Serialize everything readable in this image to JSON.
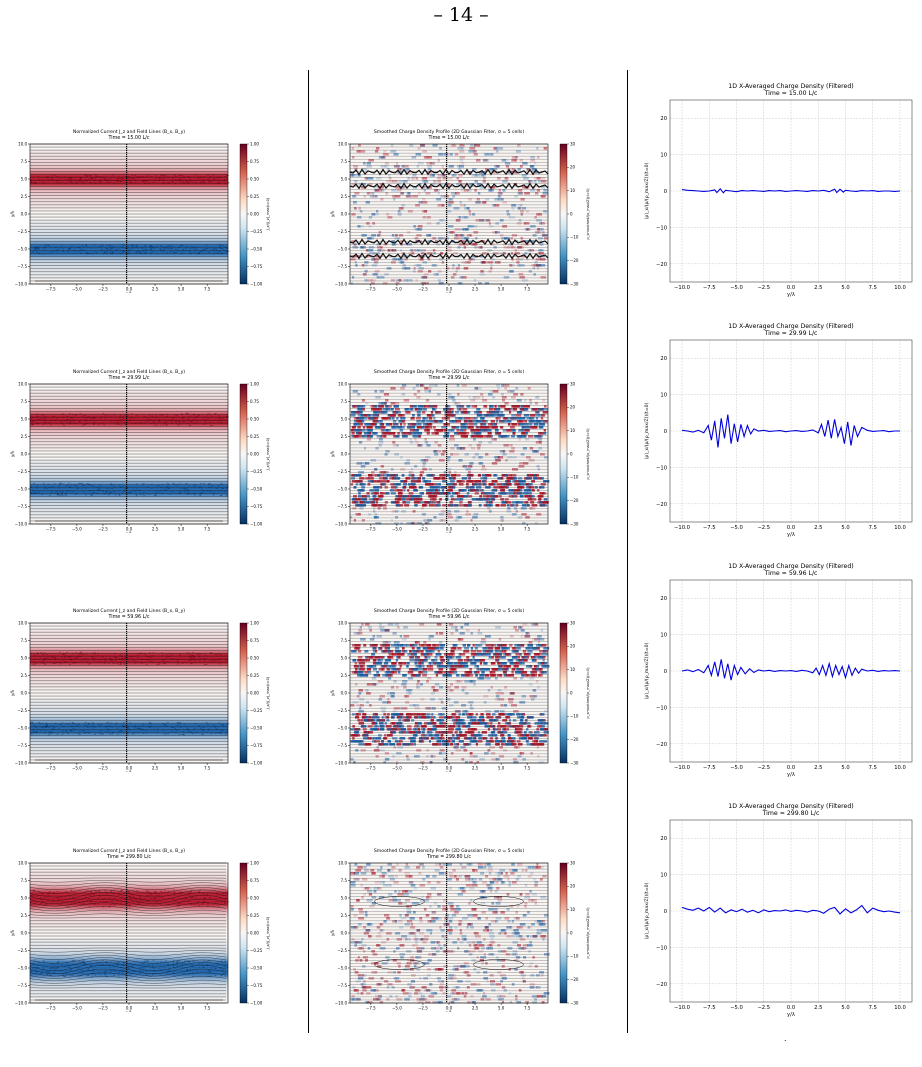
{
  "page": {
    "number": "– 14 –",
    "trailing_mark": "."
  },
  "panels_left": [
    {
      "title": "Normalized Current J_z and Field Lines (B_x, B_y)",
      "time": "Time = 15.00 L/c"
    },
    {
      "title": "Normalized Current J_z and Field Lines (B_x, B_y)",
      "time": "Time = 29.99 L/c"
    },
    {
      "title": "Normalized Current J_z and Field Lines (B_x, B_y)",
      "time": "Time = 59.96 L/c"
    },
    {
      "title": "Normalized Current J_z and Field Lines (B_x, B_y)",
      "time": "Time = 299.80 L/c"
    }
  ],
  "left_axes": {
    "xlabel": "x/λ",
    "ylabel": "y/λ",
    "xticks": [
      "−7.5",
      "−5.0",
      "−2.5",
      "0.0",
      "2.5",
      "5.0",
      "7.5"
    ],
    "yticks": [
      "10.0",
      "7.5",
      "5.0",
      "2.5",
      "0.0",
      "−2.5",
      "−5.0",
      "−7.5",
      "−10.0"
    ],
    "cbar_label": "J_z/(J_z)_max(t=0)",
    "cbar_ticks": [
      "1.00",
      "0.75",
      "0.50",
      "0.25",
      "0.00",
      "−0.25",
      "−0.50",
      "−0.75",
      "−1.00"
    ]
  },
  "panels_mid": [
    {
      "title": "Smoothed Charge Density Profile (2D Gaussian Filter, σ = 5 cells)",
      "time": "Time = 15.00 L/c"
    },
    {
      "title": "Smoothed Charge Density Profile (2D Gaussian Filter, σ = 5 cells)",
      "time": "Time = 29.99 L/c"
    },
    {
      "title": "Smoothed Charge Density Profile (2D Gaussian Filter, σ = 5 cells)",
      "time": "Time = 59.96 L/c"
    },
    {
      "title": "Smoothed Charge Density Profile (2D Gaussian Filter, σ = 5 cells)",
      "time": "Time = 299.80 L/c"
    }
  ],
  "mid_axes": {
    "xlabel": "x/λ",
    "ylabel": "y/λ",
    "xticks": [
      "−7.5",
      "−5.0",
      "−2.5",
      "0.0",
      "2.5",
      "5.0",
      "7.5"
    ],
    "yticks": [
      "10.0",
      "7.5",
      "5.0",
      "2.5",
      "0.0",
      "−2.5",
      "−5.0",
      "−7.5",
      "−10.0"
    ],
    "cbar_label": "ρ_smoothed/(ρ_max/Z)(t=0)",
    "cbar_ticks": [
      "30",
      "20",
      "10",
      "0",
      "−10",
      "−20",
      "−30"
    ]
  },
  "chart_data": [
    {
      "type": "line",
      "title": "1D X-Averaged Charge Density (Filtered)",
      "subtitle": "Time = 15.00 L/c",
      "xlabel": "y/λ",
      "ylabel": "⟨ρ⟩_x/(ρ/(ρ_max/Z))(t=0)",
      "xlim": [
        -10,
        10
      ],
      "ylim": [
        -25,
        25
      ],
      "xticks": [
        "−10.0",
        "−7.5",
        "−5.0",
        "−2.5",
        "0.0",
        "2.5",
        "5.0",
        "7.5",
        "10.0"
      ],
      "yticks": [
        "20",
        "10",
        "0",
        "−10",
        "−20"
      ],
      "grid": true,
      "series": [
        {
          "color": "#0000dd",
          "x": [
            -10,
            -9.5,
            -9,
            -8.5,
            -8,
            -7.5,
            -7,
            -6.8,
            -6.5,
            -6.2,
            -6,
            -5.5,
            -5,
            -4.5,
            -4,
            -3.5,
            -3,
            -2.5,
            -2,
            -1.5,
            -1,
            -0.5,
            0,
            0.5,
            1,
            1.5,
            2,
            2.5,
            3,
            3.5,
            4,
            4.2,
            4.5,
            4.8,
            5,
            5.5,
            6,
            6.5,
            7,
            7.5,
            8,
            8.5,
            9,
            9.5,
            10
          ],
          "y": [
            0.4,
            0.2,
            0.1,
            0,
            -0.1,
            0,
            0.3,
            -0.4,
            0.6,
            -0.5,
            0.2,
            0,
            -0.2,
            0.1,
            0,
            0.1,
            0,
            -0.1,
            0.1,
            0,
            0.1,
            -0.1,
            0,
            0.1,
            0,
            -0.1,
            0.1,
            0,
            0.2,
            -0.2,
            0.5,
            -0.4,
            0.5,
            -0.3,
            0.2,
            0,
            -0.1,
            0.1,
            0,
            0.1,
            -0.1,
            0,
            0,
            -0.1,
            0
          ]
        }
      ]
    },
    {
      "type": "line",
      "title": "1D X-Averaged Charge Density (Filtered)",
      "subtitle": "Time = 29.99 L/c",
      "xlabel": "y/λ",
      "ylabel": "⟨ρ⟩_x/(ρ/(ρ_max/Z))(t=0)",
      "xlim": [
        -10,
        10
      ],
      "ylim": [
        -25,
        25
      ],
      "xticks": [
        "−10.0",
        "−7.5",
        "−5.0",
        "−2.5",
        "0.0",
        "2.5",
        "5.0",
        "7.5",
        "10.0"
      ],
      "yticks": [
        "20",
        "10",
        "0",
        "−10",
        "−20"
      ],
      "grid": true,
      "series": [
        {
          "color": "#0000dd",
          "x": [
            -10,
            -9.5,
            -9,
            -8.5,
            -8,
            -7.6,
            -7.3,
            -7,
            -6.7,
            -6.4,
            -6.1,
            -5.8,
            -5.5,
            -5.2,
            -4.9,
            -4.6,
            -4.3,
            -4,
            -3.7,
            -3.4,
            -3,
            -2.5,
            -2,
            -1.5,
            -1,
            -0.5,
            0,
            0.5,
            1,
            1.5,
            2,
            2.5,
            2.8,
            3.1,
            3.4,
            3.7,
            4,
            4.3,
            4.6,
            4.9,
            5.2,
            5.5,
            5.8,
            6.1,
            6.5,
            7,
            7.5,
            8,
            8.5,
            9,
            9.5,
            10
          ],
          "y": [
            0.2,
            0,
            -0.3,
            0.2,
            -0.5,
            1.5,
            -2.5,
            2.8,
            -4.5,
            3.5,
            -2,
            4.5,
            -3.5,
            2,
            -3,
            1.8,
            -1.5,
            1.5,
            -0.8,
            0.6,
            0,
            0.2,
            -0.1,
            0,
            0.1,
            -0.2,
            0,
            0.1,
            -0.1,
            0,
            0.3,
            -0.5,
            1.8,
            -1.5,
            3,
            -2,
            3.2,
            -1.5,
            1,
            -3.5,
            2.5,
            -4,
            1.5,
            -1.5,
            1,
            0.2,
            -0.1,
            0,
            0.1,
            -0.2,
            0,
            0
          ]
        }
      ]
    },
    {
      "type": "line",
      "title": "1D X-Averaged Charge Density (Filtered)",
      "subtitle": "Time = 59.96 L/c",
      "xlabel": "y/λ",
      "ylabel": "⟨ρ⟩_x/(ρ/(ρ_max/Z))(t=0)",
      "xlim": [
        -10,
        10
      ],
      "ylim": [
        -25,
        25
      ],
      "xticks": [
        "−10.0",
        "−7.5",
        "−5.0",
        "−2.5",
        "0.0",
        "2.5",
        "5.0",
        "7.5",
        "10.0"
      ],
      "yticks": [
        "20",
        "10",
        "0",
        "−10",
        "−20"
      ],
      "grid": true,
      "series": [
        {
          "color": "#0000dd",
          "x": [
            -10,
            -9.5,
            -9,
            -8.5,
            -8,
            -7.6,
            -7.3,
            -7,
            -6.7,
            -6.4,
            -6.1,
            -5.8,
            -5.5,
            -5.2,
            -4.9,
            -4.6,
            -4.2,
            -3.8,
            -3.4,
            -3,
            -2.5,
            -2,
            -1.5,
            -1,
            -0.5,
            0,
            0.5,
            1,
            1.5,
            2,
            2.3,
            2.6,
            2.9,
            3.2,
            3.5,
            3.8,
            4.1,
            4.4,
            4.7,
            5,
            5.3,
            5.6,
            5.9,
            6.2,
            6.5,
            7,
            7.5,
            8,
            8.5,
            9,
            9.5,
            10
          ],
          "y": [
            0,
            0.3,
            -0.2,
            0.4,
            -0.5,
            1.5,
            -1.2,
            2.5,
            -1.5,
            3.2,
            -2,
            2,
            -2.5,
            1.5,
            -1,
            1,
            -0.8,
            0.6,
            -0.4,
            0.3,
            0,
            0.2,
            -0.1,
            0.1,
            0,
            0.1,
            -0.1,
            0.2,
            0,
            -0.5,
            0.8,
            -1,
            1.5,
            -1.2,
            2,
            -1.5,
            1.5,
            -1,
            1.2,
            -1.8,
            1.5,
            -1.2,
            0.8,
            -0.6,
            0.5,
            0,
            0.2,
            -0.1,
            0.1,
            0,
            0.1,
            0
          ]
        }
      ]
    },
    {
      "type": "line",
      "title": "1D X-Averaged Charge Density (Filtered)",
      "subtitle": "Time = 299.80 L/c",
      "xlabel": "y/λ",
      "ylabel": "⟨ρ⟩_x/(ρ/(ρ_max/Z))(t=0)",
      "xlim": [
        -10,
        10
      ],
      "ylim": [
        -25,
        25
      ],
      "xticks": [
        "−10.0",
        "−7.5",
        "−5.0",
        "−2.5",
        "0.0",
        "2.5",
        "5.0",
        "7.5",
        "10.0"
      ],
      "yticks": [
        "20",
        "10",
        "0",
        "−10",
        "−20"
      ],
      "grid": true,
      "series": [
        {
          "color": "#0000dd",
          "x": [
            -10,
            -9.5,
            -9,
            -8.5,
            -8,
            -7.5,
            -7,
            -6.5,
            -6,
            -5.5,
            -5,
            -4.5,
            -4,
            -3.5,
            -3,
            -2.5,
            -2,
            -1.5,
            -1,
            -0.5,
            0,
            0.5,
            1,
            1.5,
            2,
            2.5,
            3,
            3.5,
            4,
            4.5,
            5,
            5.5,
            6,
            6.5,
            7,
            7.5,
            8,
            8.5,
            9,
            9.5,
            10
          ],
          "y": [
            1,
            0.5,
            0.2,
            0.8,
            0,
            1,
            -0.3,
            0.8,
            -0.5,
            0.3,
            -0.2,
            0.5,
            -0.3,
            0.2,
            -0.5,
            0.3,
            -0.2,
            0.1,
            0,
            0.3,
            -0.1,
            0.2,
            0,
            -0.3,
            0.2,
            0,
            -0.6,
            0.5,
            1,
            -0.8,
            0.6,
            -0.5,
            0.3,
            1.5,
            -0.5,
            0.8,
            0.2,
            -0.2,
            0,
            -0.3,
            -0.5
          ]
        }
      ]
    }
  ]
}
